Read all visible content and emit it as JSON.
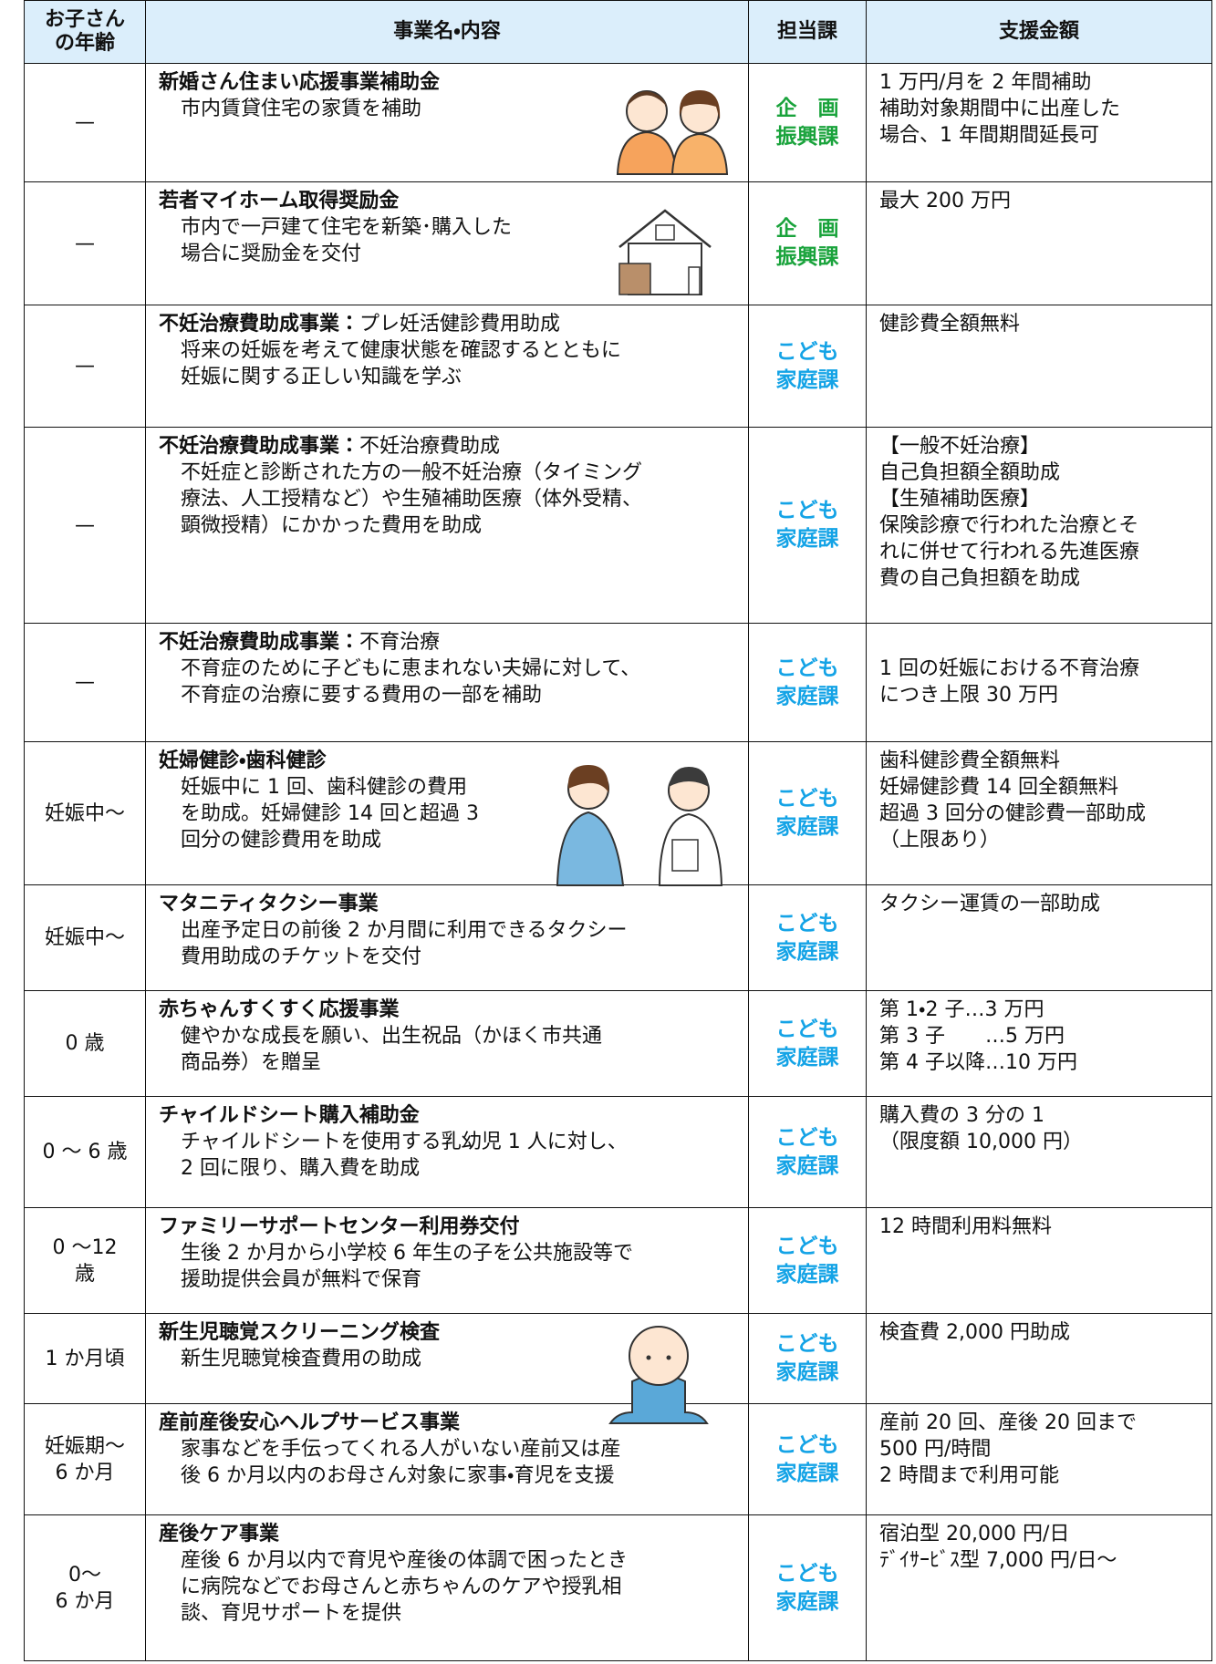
{
  "table": {
    "header": [
      [
        "お子さん",
        "の年齢"
      ],
      [
        "事業名・内容"
      ],
      [
        "担当課"
      ],
      [
        "支援金額"
      ]
    ],
    "rows": [
      {
        "age": [
          "—"
        ],
        "title": "新婚さん住まい応援事業補助金",
        "description": [
          "市内賃貸住宅の家賃を補助"
        ],
        "department": [
          "企　画",
          "振興課"
        ],
        "department_color": "#1aa33c",
        "amount": [
          "1 万円/月を 2 年間補助",
          "補助対象期間中に出産した",
          "場合、1 年間期間延長可"
        ]
      },
      {
        "age": [
          "—"
        ],
        "title": "若者マイホーム取得奨励金",
        "description": [
          "市内で一戸建て住宅を新築･購入した",
          "場合に奨励金を交付"
        ],
        "department": [
          "企　画",
          "振興課"
        ],
        "department_color": "#1aa33c",
        "amount": [
          "最大 200 万円"
        ]
      },
      {
        "age": [
          "—"
        ],
        "title": "不妊治療費助成事業：",
        "subtitle": "プレ妊活健診費用助成",
        "description": [
          "将来の妊娠を考えて健康状態を確認するとともに",
          "妊娠に関する正しい知識を学ぶ"
        ],
        "department": [
          "こども",
          "家庭課"
        ],
        "department_color": "#14a3e6",
        "amount": [
          "健診費全額無料"
        ]
      },
      {
        "age": [
          "—"
        ],
        "title": "不妊治療費助成事業：",
        "subtitle": "不妊治療費助成",
        "description": [
          "不妊症と診断された方の一般不妊治療（タイミング",
          "療法、人工授精など）や生殖補助医療（体外受精、",
          "顕微授精）にかかった費用を助成"
        ],
        "department": [
          "こども",
          "家庭課"
        ],
        "department_color": "#14a3e6",
        "amount": [
          "【一般不妊治療】",
          "自己負担額全額助成",
          "【生殖補助医療】",
          "保険診療で行われた治療とそ",
          "れに併せて行われる先進医療",
          "費の自己負担額を助成"
        ]
      },
      {
        "age": [
          "—"
        ],
        "title": "不妊治療費助成事業：",
        "subtitle": "不育治療",
        "description": [
          "不育症のために子どもに恵まれない夫婦に対して、",
          "不育症の治療に要する費用の一部を補助"
        ],
        "department": [
          "こども",
          "家庭課"
        ],
        "department_color": "#14a3e6",
        "amount": [
          "",
          "1 回の妊娠における不育治療",
          "につき上限 30 万円"
        ]
      },
      {
        "age": [
          "妊娠中～"
        ],
        "title": "妊婦健診・歯科健診",
        "description": [
          "妊娠中に 1 回、歯科健診の費用",
          "を助成。妊婦健診 14 回と超過 3",
          "回分の健診費用を助成"
        ],
        "department": [
          "こども",
          "家庭課"
        ],
        "department_color": "#14a3e6",
        "amount": [
          "歯科健診費全額無料",
          "妊婦健診費 14 回全額無料",
          "超過 3 回分の健診費一部助成",
          "（上限あり）"
        ]
      },
      {
        "age": [
          "妊娠中～"
        ],
        "title": "マタニティタクシー事業",
        "description": [
          "出産予定日の前後 2 か月間に利用できるタクシー",
          "費用助成のチケットを交付"
        ],
        "department": [
          "こども",
          "家庭課"
        ],
        "department_color": "#14a3e6",
        "amount": [
          "タクシー運賃の一部助成"
        ]
      },
      {
        "age": [
          "0 歳"
        ],
        "title": "赤ちゃんすくすく応援事業",
        "description": [
          "健やかな成長を願い、出生祝品（かほく市共通",
          "商品券）を贈呈"
        ],
        "department": [
          "こども",
          "家庭課"
        ],
        "department_color": "#14a3e6",
        "amount": [
          "第 1・2 子…3 万円",
          "第 3 子　　…5 万円",
          "第 4 子以降…10 万円"
        ]
      },
      {
        "age": [
          "0 ～ 6 歳"
        ],
        "title": "チャイルドシート購入補助金",
        "description": [
          "チャイルドシートを使用する乳幼児 1 人に対し、",
          "2 回に限り、購入費を助成"
        ],
        "department": [
          "こども",
          "家庭課"
        ],
        "department_color": "#14a3e6",
        "amount": [
          "購入費の 3 分の 1",
          "（限度額 10,000 円）"
        ]
      },
      {
        "age": [
          "0 ～12",
          "歳"
        ],
        "title": "ファミリーサポートセンター利用券交付",
        "description": [
          "生後 2 か月から小学校 6 年生の子を公共施設等で",
          "援助提供会員が無料で保育"
        ],
        "department": [
          "こども",
          "家庭課"
        ],
        "department_color": "#14a3e6",
        "amount": [
          "12 時間利用料無料"
        ]
      },
      {
        "age": [
          "1 か月頃"
        ],
        "title": "新生児聴覚スクリーニング検査",
        "description": [
          "新生児聴覚検査費用の助成"
        ],
        "department": [
          "こども",
          "家庭課"
        ],
        "department_color": "#14a3e6",
        "amount": [
          "検査費 2,000 円助成"
        ]
      },
      {
        "age": [
          "妊娠期～",
          "6 か月"
        ],
        "title": "産前産後安心ヘルプサービス事業",
        "description": [
          "家事などを手伝ってくれる人がいない産前又は産",
          "後 6 か月以内のお母さん対象に家事・育児を支援"
        ],
        "department": [
          "こども",
          "家庭課"
        ],
        "department_color": "#14a3e6",
        "amount": [
          "産前 20 回、産後 20 回まで",
          "500 円/時間",
          "2 時間まで利用可能"
        ]
      },
      {
        "age": [
          "0～",
          "6 か月"
        ],
        "title": "産後ケア事業",
        "description": [
          "産後 6 か月以内で育児や産後の体調で困ったとき",
          "に病院などでお母さんと赤ちゃんのケアや授乳相",
          "談、育児サポートを提供"
        ],
        "department": [
          "こども",
          "家庭課"
        ],
        "department_color": "#14a3e6",
        "amount": [
          "宿泊型 20,000 円/日",
          "ﾃﾞｲｻｰﾋﾞｽ型 7,000 円/日～"
        ]
      }
    ]
  }
}
